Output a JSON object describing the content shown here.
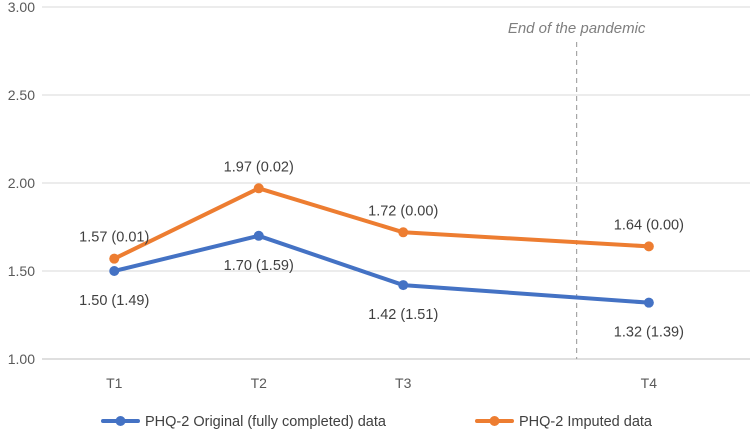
{
  "chart_data": {
    "type": "line",
    "categories": [
      "T1",
      "T2",
      "T3",
      "T4"
    ],
    "x": [
      1,
      2,
      3,
      4.7
    ],
    "xlim": [
      0.5,
      5.4
    ],
    "ylim": [
      1.0,
      3.0
    ],
    "yticks": [
      "1.00",
      "1.50",
      "2.00",
      "2.50",
      "3.00"
    ],
    "ytick_values": [
      1.0,
      1.5,
      2.0,
      2.5,
      3.0
    ],
    "grid": true,
    "series": [
      {
        "name": "PHQ-2 Original (fully completed) data",
        "color": "#4472C4",
        "values": [
          1.5,
          1.7,
          1.42,
          1.32
        ],
        "labels": [
          "1.50 (1.49)",
          "1.70 (1.59)",
          "1.42 (1.51)",
          "1.32 (1.39)"
        ],
        "label_position": "below"
      },
      {
        "name": "PHQ-2 Imputed data",
        "color": "#ED7D31",
        "values": [
          1.57,
          1.97,
          1.72,
          1.64
        ],
        "labels": [
          "1.57 (0.01)",
          "1.97 (0.02)",
          "1.72 (0.00)",
          "1.64 (0.00)"
        ],
        "label_position": "above"
      }
    ],
    "annotation": {
      "text": "End of the pandemic",
      "x": 4.2
    },
    "legend_position": "bottom"
  },
  "colors": {
    "grid": "#d9d9d9",
    "axis": "#bfbfbf",
    "annotation_line": "#a6a6a6"
  }
}
